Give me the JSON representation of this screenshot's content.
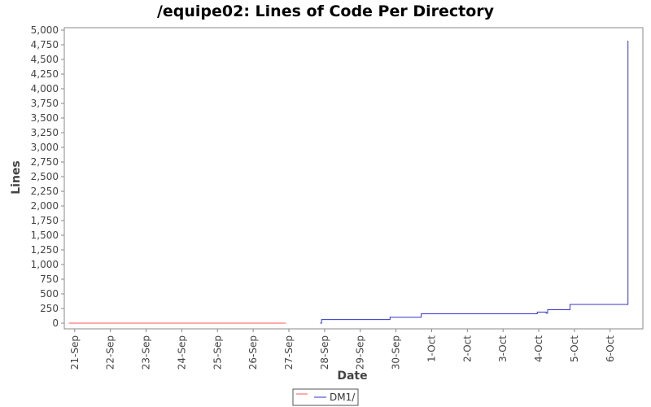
{
  "chart_data": {
    "type": "line",
    "title": "/equipe02: Lines of Code Per Directory",
    "xlabel": "Date",
    "ylabel": "Lines",
    "ylim": [
      0,
      5000
    ],
    "yticks": [
      0,
      250,
      500,
      750,
      1000,
      1250,
      1500,
      1750,
      2000,
      2250,
      2500,
      2750,
      3000,
      3250,
      3500,
      3750,
      4000,
      4250,
      4500,
      4750,
      5000
    ],
    "ytick_labels": [
      "0",
      "250",
      "500",
      "750",
      "1,000",
      "1,250",
      "1,500",
      "1,750",
      "2,000",
      "2,250",
      "2,500",
      "2,750",
      "3,000",
      "3,250",
      "3,500",
      "3,750",
      "4,000",
      "4,250",
      "4,500",
      "4,750",
      "5,000"
    ],
    "xlim": [
      "2008-09-20T17:00",
      "2008-10-06T22:00"
    ],
    "xticks": [
      "2008-09-21",
      "2008-09-22",
      "2008-09-23",
      "2008-09-24",
      "2008-09-25",
      "2008-09-26",
      "2008-09-27",
      "2008-09-28",
      "2008-09-29",
      "2008-09-30",
      "2008-10-01",
      "2008-10-02",
      "2008-10-03",
      "2008-10-04",
      "2008-10-05",
      "2008-10-06"
    ],
    "xtick_labels": [
      "21-Sep",
      "22-Sep",
      "23-Sep",
      "24-Sep",
      "25-Sep",
      "26-Sep",
      "27-Sep",
      "28-Sep",
      "29-Sep",
      "30-Sep",
      "1-Oct",
      "2-Oct",
      "3-Oct",
      "4-Oct",
      "5-Oct",
      "6-Oct"
    ],
    "grid": false,
    "legend_position": "bottom-center",
    "series": [
      {
        "name": "",
        "color": "#ff5555",
        "step": true,
        "points": [
          [
            "2008-09-20T20:00",
            0
          ],
          [
            "2008-09-26T22:00",
            0
          ]
        ]
      },
      {
        "name": "DM1/",
        "color": "#3333cc",
        "step": true,
        "points": [
          [
            "2008-09-27T21:00",
            0
          ],
          [
            "2008-09-27T22:00",
            60
          ],
          [
            "2008-09-29T19:00",
            60
          ],
          [
            "2008-09-29T20:00",
            100
          ],
          [
            "2008-09-30T16:00",
            100
          ],
          [
            "2008-09-30T17:00",
            160
          ],
          [
            "2008-10-03T22:00",
            160
          ],
          [
            "2008-10-03T23:00",
            190
          ],
          [
            "2008-10-04T05:00",
            170
          ],
          [
            "2008-10-04T06:00",
            230
          ],
          [
            "2008-10-04T20:00",
            230
          ],
          [
            "2008-10-04T21:00",
            320
          ],
          [
            "2008-10-06T10:00",
            320
          ],
          [
            "2008-10-06T12:00",
            4820
          ]
        ]
      }
    ]
  }
}
